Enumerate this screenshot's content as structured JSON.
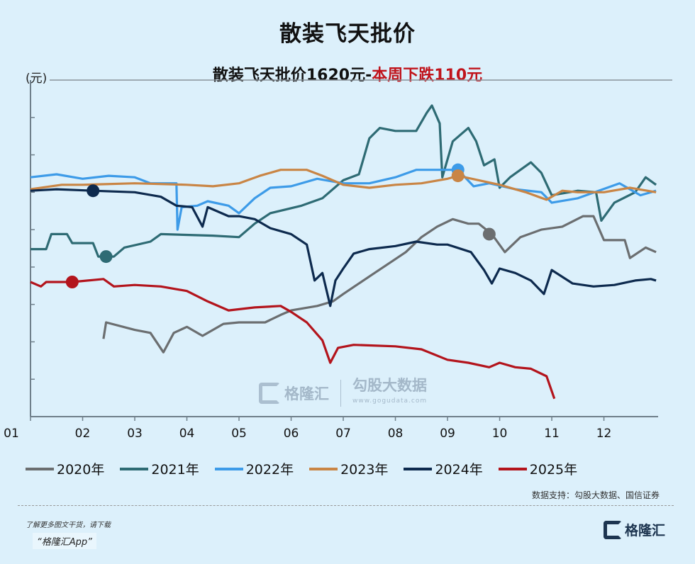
{
  "header": {
    "title": "散装飞天批价",
    "subtitle_main": "散装飞天批价1620元-",
    "subtitle_change": "本周下跌110元",
    "unit": "(元)"
  },
  "footer": {
    "source": "数据支持：勾股大数据、国信证券",
    "promo_line1": "了解更多图文干货，请下载",
    "promo_line2": "“格隆汇App”",
    "logo_text": "格隆汇",
    "watermark_brand": "格隆汇",
    "watermark_data": "勾股大数据",
    "watermark_url": "www.gogudata.com"
  },
  "chart_data": {
    "type": "line",
    "title": "散装飞天批价",
    "subtitle": "散装飞天批价1620元-本周下跌110元",
    "ylabel": "(元)",
    "xlabel": "",
    "x_tick_labels": [
      "01",
      "02",
      "03",
      "04",
      "05",
      "06",
      "07",
      "08",
      "09",
      "10",
      "11",
      "12"
    ],
    "xlim": [
      1,
      13.04
    ],
    "ylim": [
      1500,
      3750
    ],
    "y_tick_step": 250,
    "y_tick_labels_shown": false,
    "grid": false,
    "legend_position": "bottom",
    "series": [
      {
        "name": "2020年",
        "color": "#6b6e70",
        "marker": [
          9.8,
          2720
        ],
        "points": [
          [
            2.4,
            2020
          ],
          [
            2.45,
            2130
          ],
          [
            3.0,
            2080
          ],
          [
            3.3,
            2060
          ],
          [
            3.55,
            1930
          ],
          [
            3.75,
            2060
          ],
          [
            4.0,
            2100
          ],
          [
            4.3,
            2040
          ],
          [
            4.7,
            2120
          ],
          [
            5.0,
            2130
          ],
          [
            5.5,
            2130
          ],
          [
            5.8,
            2180
          ],
          [
            6.0,
            2210
          ],
          [
            6.5,
            2240
          ],
          [
            6.8,
            2270
          ],
          [
            7.0,
            2320
          ],
          [
            7.3,
            2390
          ],
          [
            7.6,
            2460
          ],
          [
            7.9,
            2530
          ],
          [
            8.2,
            2600
          ],
          [
            8.5,
            2700
          ],
          [
            8.8,
            2770
          ],
          [
            9.1,
            2820
          ],
          [
            9.4,
            2790
          ],
          [
            9.6,
            2790
          ],
          [
            9.85,
            2720
          ],
          [
            10.1,
            2600
          ],
          [
            10.4,
            2700
          ],
          [
            10.8,
            2750
          ],
          [
            11.2,
            2770
          ],
          [
            11.6,
            2840
          ],
          [
            11.8,
            2840
          ],
          [
            12.0,
            2680
          ],
          [
            12.4,
            2680
          ],
          [
            12.5,
            2560
          ],
          [
            12.8,
            2630
          ],
          [
            13.0,
            2600
          ]
        ]
      },
      {
        "name": "2021年",
        "color": "#2e6b74",
        "marker": [
          2.45,
          2570
        ],
        "points": [
          [
            1.0,
            2620
          ],
          [
            1.3,
            2620
          ],
          [
            1.4,
            2720
          ],
          [
            1.7,
            2720
          ],
          [
            1.8,
            2660
          ],
          [
            2.2,
            2660
          ],
          [
            2.3,
            2570
          ],
          [
            2.6,
            2570
          ],
          [
            2.8,
            2630
          ],
          [
            3.3,
            2670
          ],
          [
            3.5,
            2720
          ],
          [
            4.5,
            2710
          ],
          [
            5.0,
            2700
          ],
          [
            5.3,
            2790
          ],
          [
            5.6,
            2860
          ],
          [
            6.2,
            2910
          ],
          [
            6.6,
            2960
          ],
          [
            7.0,
            3080
          ],
          [
            7.3,
            3120
          ],
          [
            7.5,
            3360
          ],
          [
            7.7,
            3430
          ],
          [
            8.0,
            3410
          ],
          [
            8.4,
            3410
          ],
          [
            8.6,
            3530
          ],
          [
            8.7,
            3580
          ],
          [
            8.85,
            3460
          ],
          [
            8.9,
            3100
          ],
          [
            9.1,
            3340
          ],
          [
            9.4,
            3430
          ],
          [
            9.55,
            3340
          ],
          [
            9.7,
            3180
          ],
          [
            9.9,
            3220
          ],
          [
            10.0,
            3030
          ],
          [
            10.2,
            3100
          ],
          [
            10.6,
            3200
          ],
          [
            10.8,
            3130
          ],
          [
            11.0,
            2980
          ],
          [
            11.5,
            3010
          ],
          [
            11.85,
            3000
          ],
          [
            11.95,
            2810
          ],
          [
            12.2,
            2930
          ],
          [
            12.6,
            3000
          ],
          [
            12.8,
            3100
          ],
          [
            13.0,
            3050
          ]
        ]
      },
      {
        "name": "2022年",
        "color": "#3d9be8",
        "marker": [
          9.2,
          3150
        ],
        "points": [
          [
            1.0,
            3100
          ],
          [
            1.5,
            3120
          ],
          [
            2.0,
            3090
          ],
          [
            2.5,
            3110
          ],
          [
            3.0,
            3100
          ],
          [
            3.3,
            3060
          ],
          [
            3.8,
            3060
          ],
          [
            3.82,
            2750
          ],
          [
            3.9,
            2900
          ],
          [
            4.2,
            2910
          ],
          [
            4.4,
            2940
          ],
          [
            4.8,
            2910
          ],
          [
            5.0,
            2860
          ],
          [
            5.3,
            2960
          ],
          [
            5.6,
            3030
          ],
          [
            6.0,
            3040
          ],
          [
            6.5,
            3090
          ],
          [
            7.0,
            3060
          ],
          [
            7.5,
            3060
          ],
          [
            8.0,
            3100
          ],
          [
            8.4,
            3150
          ],
          [
            8.8,
            3150
          ],
          [
            9.2,
            3150
          ],
          [
            9.5,
            3040
          ],
          [
            9.8,
            3060
          ],
          [
            10.3,
            3020
          ],
          [
            10.8,
            3000
          ],
          [
            11.0,
            2930
          ],
          [
            11.5,
            2960
          ],
          [
            11.9,
            3010
          ],
          [
            12.3,
            3060
          ],
          [
            12.7,
            2980
          ],
          [
            13.0,
            3010
          ]
        ]
      },
      {
        "name": "2023年",
        "color": "#c98545",
        "marker": [
          9.2,
          3110
        ],
        "points": [
          [
            1.0,
            3020
          ],
          [
            1.6,
            3050
          ],
          [
            2.0,
            3050
          ],
          [
            3.0,
            3060
          ],
          [
            4.0,
            3050
          ],
          [
            4.5,
            3040
          ],
          [
            5.0,
            3060
          ],
          [
            5.4,
            3110
          ],
          [
            5.8,
            3150
          ],
          [
            6.3,
            3150
          ],
          [
            6.6,
            3110
          ],
          [
            7.0,
            3050
          ],
          [
            7.5,
            3030
          ],
          [
            8.0,
            3050
          ],
          [
            8.5,
            3060
          ],
          [
            9.0,
            3090
          ],
          [
            9.2,
            3110
          ],
          [
            9.6,
            3080
          ],
          [
            10.0,
            3050
          ],
          [
            10.5,
            3000
          ],
          [
            10.9,
            2950
          ],
          [
            11.2,
            3010
          ],
          [
            11.5,
            3000
          ],
          [
            12.0,
            3000
          ],
          [
            12.5,
            3030
          ],
          [
            13.0,
            3000
          ]
        ]
      },
      {
        "name": "2024年",
        "color": "#0d2a4e",
        "marker": [
          2.2,
          3010
        ],
        "points": [
          [
            1.0,
            3010
          ],
          [
            1.5,
            3020
          ],
          [
            2.2,
            3010
          ],
          [
            3.0,
            3000
          ],
          [
            3.5,
            2970
          ],
          [
            3.8,
            2910
          ],
          [
            4.1,
            2900
          ],
          [
            4.3,
            2770
          ],
          [
            4.4,
            2900
          ],
          [
            4.8,
            2840
          ],
          [
            5.0,
            2840
          ],
          [
            5.3,
            2820
          ],
          [
            5.6,
            2760
          ],
          [
            6.0,
            2720
          ],
          [
            6.3,
            2650
          ],
          [
            6.45,
            2410
          ],
          [
            6.6,
            2460
          ],
          [
            6.75,
            2240
          ],
          [
            6.85,
            2410
          ],
          [
            7.0,
            2490
          ],
          [
            7.2,
            2590
          ],
          [
            7.5,
            2620
          ],
          [
            8.0,
            2640
          ],
          [
            8.4,
            2670
          ],
          [
            8.8,
            2650
          ],
          [
            9.0,
            2650
          ],
          [
            9.45,
            2600
          ],
          [
            9.7,
            2480
          ],
          [
            9.85,
            2390
          ],
          [
            10.0,
            2490
          ],
          [
            10.3,
            2460
          ],
          [
            10.6,
            2410
          ],
          [
            10.85,
            2320
          ],
          [
            11.0,
            2480
          ],
          [
            11.4,
            2390
          ],
          [
            11.8,
            2370
          ],
          [
            12.2,
            2380
          ],
          [
            12.6,
            2410
          ],
          [
            12.9,
            2420
          ],
          [
            13.0,
            2410
          ]
        ]
      },
      {
        "name": "2025年",
        "color": "#b3141c",
        "marker": [
          1.8,
          2400
        ],
        "points": [
          [
            1.0,
            2400
          ],
          [
            1.2,
            2370
          ],
          [
            1.3,
            2400
          ],
          [
            1.8,
            2400
          ],
          [
            2.4,
            2420
          ],
          [
            2.6,
            2370
          ],
          [
            3.0,
            2380
          ],
          [
            3.5,
            2370
          ],
          [
            4.0,
            2340
          ],
          [
            4.4,
            2270
          ],
          [
            4.8,
            2210
          ],
          [
            5.3,
            2230
          ],
          [
            5.8,
            2240
          ],
          [
            6.0,
            2200
          ],
          [
            6.3,
            2130
          ],
          [
            6.6,
            2010
          ],
          [
            6.75,
            1860
          ],
          [
            6.9,
            1960
          ],
          [
            7.2,
            1980
          ],
          [
            8.0,
            1970
          ],
          [
            8.5,
            1950
          ],
          [
            9.0,
            1880
          ],
          [
            9.4,
            1860
          ],
          [
            9.8,
            1830
          ],
          [
            10.0,
            1860
          ],
          [
            10.3,
            1830
          ],
          [
            10.6,
            1820
          ],
          [
            10.9,
            1770
          ],
          [
            11.05,
            1620
          ]
        ]
      }
    ]
  }
}
